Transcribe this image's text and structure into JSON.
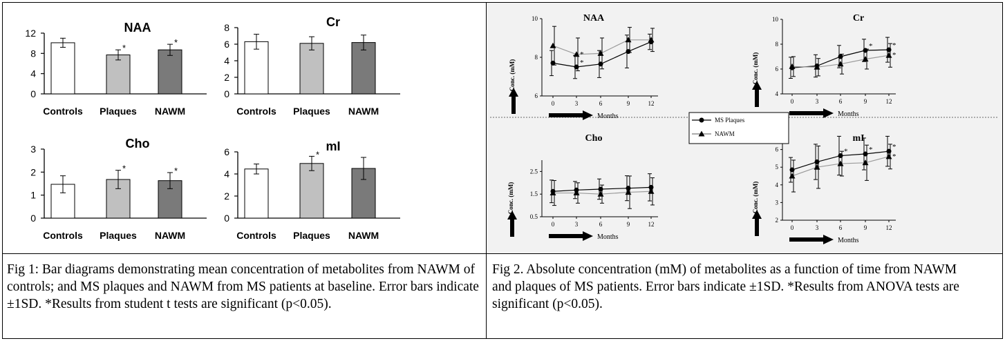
{
  "captions": {
    "fig1": "Fig 1: Bar diagrams demonstrating mean concentration of metabolites from NAWM of controls; and MS plaques and NAWM from MS patients at baseline. Error bars indicate ±1SD. *Results from student t tests are significant (p<0.05).",
    "fig2": "Fig 2. Absolute concentration (mM) of metabolites as a function of time from NAWM and plaques of MS patients. Error bars indicate ±1SD. *Results from ANOVA tests are significant (p<0.05)."
  },
  "fig2_common": {
    "ylabel": "Conc. (mM)",
    "xlabel": "Months",
    "legend": [
      "MS Plaques",
      "NAWM"
    ]
  },
  "colors": {
    "controls": "#ffffff",
    "plaques": "#c0c0c0",
    "nawm": "#7a7a7a",
    "line": "#000000",
    "nawm_line": "#9a9a9a",
    "background": "#f2f2f2"
  },
  "chart_data": [
    {
      "type": "bar",
      "title": "NAA",
      "categories": [
        "Controls",
        "Plaques",
        "NAWM"
      ],
      "values": [
        10.1,
        7.7,
        8.7
      ],
      "errors": [
        0.9,
        1.0,
        1.1
      ],
      "significant": [
        "",
        "*",
        "*"
      ],
      "ylim": [
        0,
        12
      ],
      "yticks": [
        0,
        4,
        8,
        12
      ]
    },
    {
      "type": "bar",
      "title": "Cr",
      "categories": [
        "Controls",
        "Plaques",
        "NAWM"
      ],
      "values": [
        6.3,
        6.1,
        6.2
      ],
      "errors": [
        0.9,
        0.8,
        0.9
      ],
      "significant": [
        "",
        "",
        ""
      ],
      "ylim": [
        0,
        8
      ],
      "yticks": [
        0,
        2,
        4,
        6,
        8
      ]
    },
    {
      "type": "bar",
      "title": "Cho",
      "categories": [
        "Controls",
        "Plaques",
        "NAWM"
      ],
      "values": [
        1.47,
        1.68,
        1.63
      ],
      "errors": [
        0.37,
        0.4,
        0.35
      ],
      "significant": [
        "",
        "*",
        "*"
      ],
      "ylim": [
        0,
        3
      ],
      "yticks": [
        0,
        1,
        2,
        3
      ]
    },
    {
      "type": "bar",
      "title": "mI",
      "categories": [
        "Controls",
        "Plaques",
        "NAWM"
      ],
      "values": [
        4.45,
        4.95,
        4.5
      ],
      "errors": [
        0.45,
        0.65,
        1.0
      ],
      "significant": [
        "",
        "*",
        ""
      ],
      "ylim": [
        0,
        6
      ],
      "yticks": [
        0,
        2,
        4,
        6
      ]
    },
    {
      "type": "line",
      "title": "NAA",
      "x": [
        0,
        3,
        6,
        9,
        12
      ],
      "xticks": [
        "0",
        "3",
        "6",
        "9",
        "12"
      ],
      "ylim": [
        6,
        10
      ],
      "yticks": [
        6,
        8,
        10
      ],
      "series": [
        {
          "name": "MS Plaques",
          "values": [
            7.7,
            7.5,
            7.65,
            8.3,
            8.8
          ],
          "errors": [
            0.65,
            0.6,
            0.7,
            0.85,
            0.4
          ],
          "significant": [
            "",
            "*",
            "",
            "",
            ""
          ]
        },
        {
          "name": "NAWM",
          "values": [
            8.6,
            8.15,
            8.2,
            8.9,
            8.9
          ],
          "errors": [
            1.0,
            0.85,
            0.8,
            0.65,
            0.6
          ],
          "significant": [
            "",
            "*",
            "",
            "",
            ""
          ]
        }
      ]
    },
    {
      "type": "line",
      "title": "Cr",
      "x": [
        0,
        3,
        6,
        9,
        12
      ],
      "xticks": [
        "0",
        "3",
        "6",
        "9",
        "12"
      ],
      "ylim": [
        4,
        10
      ],
      "yticks": [
        4,
        6,
        8,
        10
      ],
      "series": [
        {
          "name": "MS Plaques",
          "values": [
            6.1,
            6.25,
            7.0,
            7.5,
            7.55
          ],
          "errors": [
            0.85,
            0.9,
            0.9,
            0.9,
            1.0
          ],
          "significant": [
            "",
            "",
            "",
            "*",
            "*"
          ]
        },
        {
          "name": "NAWM",
          "values": [
            6.2,
            6.15,
            6.4,
            6.8,
            7.1
          ],
          "errors": [
            0.8,
            0.7,
            0.8,
            0.8,
            0.95
          ],
          "significant": [
            "",
            "",
            "",
            "",
            "*"
          ]
        }
      ]
    },
    {
      "type": "line",
      "title": "Cho",
      "x": [
        0,
        3,
        6,
        9,
        12
      ],
      "xticks": [
        "0",
        "3",
        "6",
        "9",
        "12"
      ],
      "ylim": [
        0.5,
        3.0
      ],
      "yticks": [
        0.5,
        1.5,
        2.5
      ],
      "yticklabels": [
        "0.5",
        "1.5",
        "2.5"
      ],
      "series": [
        {
          "name": "MS Plaques",
          "values": [
            1.62,
            1.68,
            1.72,
            1.76,
            1.8
          ],
          "errors": [
            0.5,
            0.38,
            0.45,
            0.55,
            0.6
          ],
          "significant": [
            "",
            "",
            "",
            "",
            ""
          ]
        },
        {
          "name": "NAWM",
          "values": [
            1.55,
            1.55,
            1.5,
            1.58,
            1.62
          ],
          "errors": [
            0.55,
            0.45,
            0.4,
            0.72,
            0.6
          ],
          "significant": [
            "",
            "",
            "",
            "",
            ""
          ]
        }
      ]
    },
    {
      "type": "line",
      "title": "mI",
      "x": [
        0,
        3,
        6,
        9,
        12
      ],
      "xticks": [
        "0",
        "3",
        "6",
        "9",
        "12"
      ],
      "ylim": [
        2,
        7
      ],
      "yticks": [
        2,
        3,
        4,
        5,
        6,
        7
      ],
      "series": [
        {
          "name": "MS Plaques",
          "values": [
            4.85,
            5.3,
            5.65,
            5.75,
            5.9
          ],
          "errors": [
            0.7,
            1.0,
            1.1,
            0.9,
            0.85
          ],
          "significant": [
            "",
            "",
            "*",
            "*",
            "*"
          ]
        },
        {
          "name": "NAWM",
          "values": [
            4.5,
            5.0,
            5.2,
            5.25,
            5.6
          ],
          "errors": [
            0.9,
            1.2,
            0.7,
            1.0,
            0.7
          ],
          "significant": [
            "",
            "",
            "",
            "",
            "*"
          ]
        }
      ]
    }
  ]
}
